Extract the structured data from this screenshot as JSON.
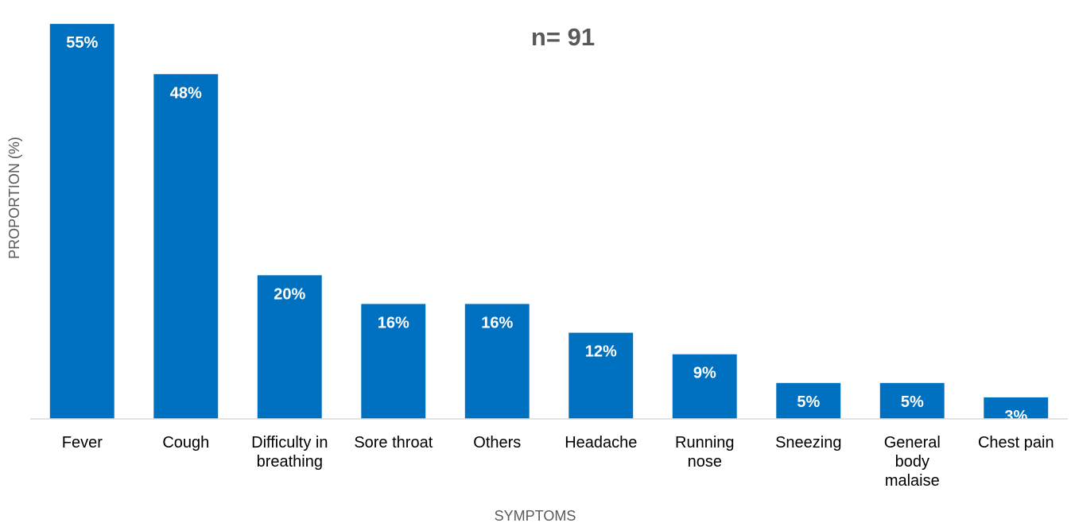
{
  "chart_data": {
    "type": "bar",
    "annotation": "n= 91",
    "xlabel": "SYMPTOMS",
    "ylabel": "PROPORTION (%)",
    "ylim": [
      0,
      57
    ],
    "categories": [
      "Fever",
      "Cough",
      "Difficulty in breathing",
      "Sore throat",
      "Others",
      "Headache",
      "Running nose",
      "Sneezing",
      "General body malaise",
      "Chest pain"
    ],
    "category_lines": [
      [
        "Fever"
      ],
      [
        "Cough"
      ],
      [
        "Difficulty in",
        "breathing"
      ],
      [
        "Sore throat"
      ],
      [
        "Others"
      ],
      [
        "Headache"
      ],
      [
        "Running",
        "nose"
      ],
      [
        "Sneezing"
      ],
      [
        "General",
        "body",
        "malaise"
      ],
      [
        "Chest pain"
      ]
    ],
    "values": [
      55,
      48,
      20,
      16,
      16,
      12,
      9,
      5,
      5,
      3
    ],
    "value_labels": [
      "55%",
      "48%",
      "20%",
      "16%",
      "16%",
      "12%",
      "9%",
      "5%",
      "5%",
      "3%"
    ],
    "bar_color": "#0070C0",
    "axis_color": "#D9D9D9",
    "gridlines": false,
    "legend": "none"
  }
}
